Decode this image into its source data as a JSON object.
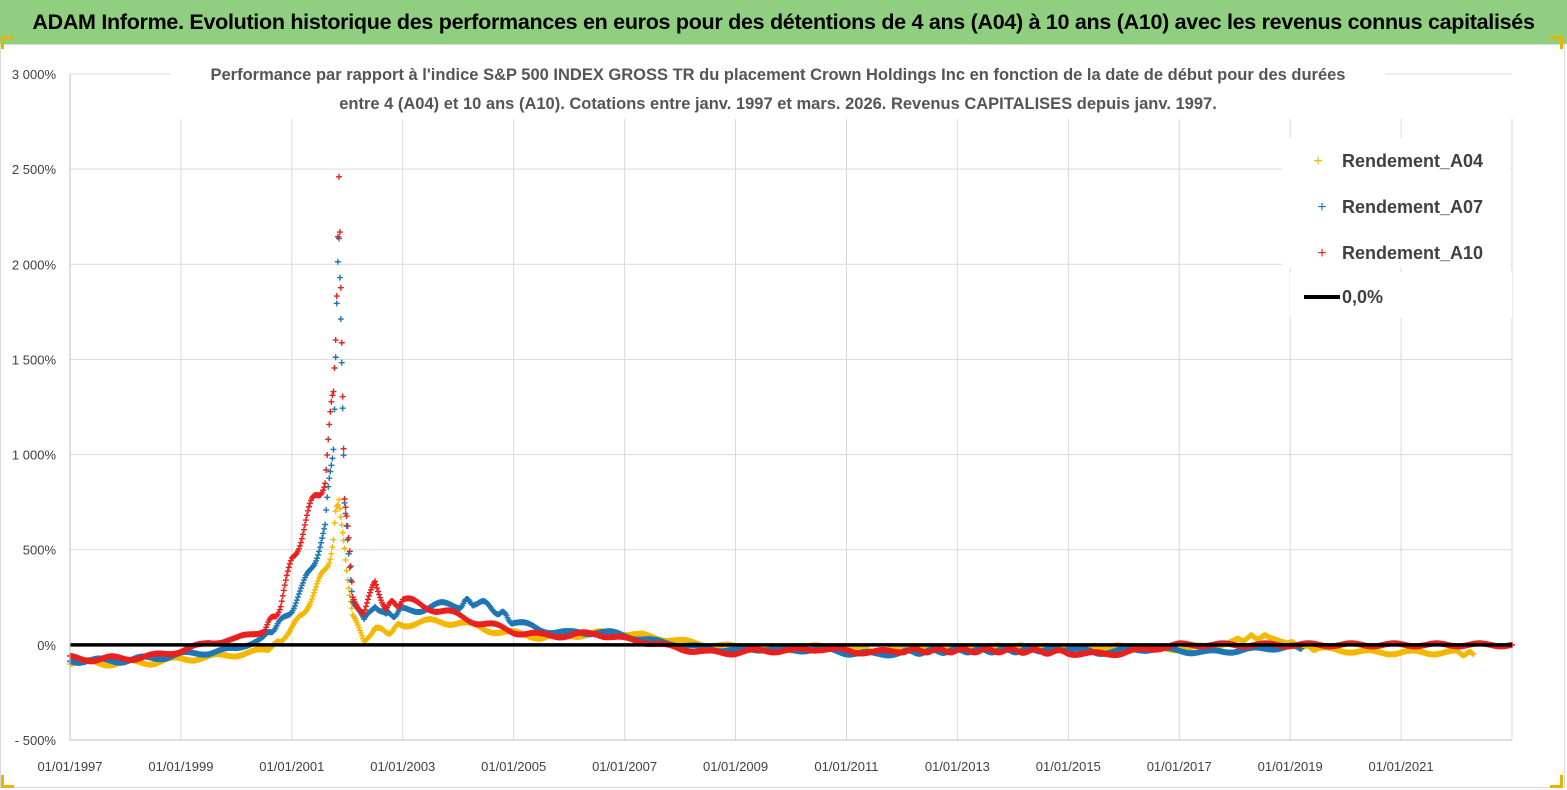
{
  "header": {
    "title": "ADAM Informe. Evolution historique des performances en euros pour des détentions de 4 ans (A04) à 10 ans (A10) avec les revenus connus capitalisés"
  },
  "chart_data": {
    "type": "scatter",
    "title_lines": [
      "Performance par rapport à l'indice S&P 500 INDEX GROSS TR  du placement Crown Holdings Inc en fonction de la date de début pour des durées",
      "entre 4 (A04) et 10 ans (A10). Cotations entre janv. 1997 et mars. 2026. Revenus CAPITALISES depuis janv. 1997."
    ],
    "xlabel": "",
    "ylabel": "",
    "ylim": [
      -500,
      3000
    ],
    "xlim": [
      1997.0,
      2023.0
    ],
    "grid": true,
    "legend_position": "top-right",
    "yticks": [
      {
        "value": 3000,
        "label": "3 000%"
      },
      {
        "value": 2500,
        "label": "2 500%"
      },
      {
        "value": 2000,
        "label": "2 000%"
      },
      {
        "value": 1500,
        "label": "1 500%"
      },
      {
        "value": 1000,
        "label": "1 000%"
      },
      {
        "value": 500,
        "label": "500%"
      },
      {
        "value": 0,
        "label": "0%"
      },
      {
        "value": -500,
        "label": "- 500%"
      }
    ],
    "xticks": [
      {
        "value": 1997,
        "label": "01/01/1997"
      },
      {
        "value": 1999,
        "label": "01/01/1999"
      },
      {
        "value": 2001,
        "label": "01/01/2001"
      },
      {
        "value": 2003,
        "label": "01/01/2003"
      },
      {
        "value": 2005,
        "label": "01/01/2005"
      },
      {
        "value": 2007,
        "label": "01/01/2007"
      },
      {
        "value": 2009,
        "label": "01/01/2009"
      },
      {
        "value": 2011,
        "label": "01/01/2011"
      },
      {
        "value": 2013,
        "label": "01/01/2013"
      },
      {
        "value": 2015,
        "label": "01/01/2015"
      },
      {
        "value": 2017,
        "label": "01/01/2017"
      },
      {
        "value": 2019,
        "label": "01/01/2019"
      },
      {
        "value": 2021,
        "label": "01/01/2021"
      }
    ],
    "series": [
      {
        "name": "Rendement_A04",
        "color": "#f5b800",
        "marker": "+",
        "x": [
          1997.0,
          1997.5,
          1998.0,
          1998.5,
          1999.0,
          1999.5,
          2000.0,
          2000.5,
          2000.8,
          2001.0,
          2001.2,
          2001.4,
          2001.6,
          2001.75,
          2001.85,
          2001.95,
          2002.1,
          2002.3,
          2002.5,
          2002.7,
          2003.0,
          2003.5,
          2004.0,
          2004.5,
          2005.0,
          2005.5,
          2006.0,
          2006.5,
          2007.0,
          2007.5,
          2008.0,
          2008.5,
          2009.0,
          2009.5,
          2010.0,
          2010.5,
          2011.0,
          2011.5,
          2012.0,
          2013.0,
          2014.0,
          2015.0,
          2016.0,
          2016.5,
          2017.0,
          2017.5,
          2018.0,
          2018.3,
          2018.6,
          2018.9,
          2019.2,
          2019.5,
          2020.0,
          2020.5,
          2021.0,
          2021.5,
          2022.0,
          2022.3
        ],
        "y": [
          -90,
          -95,
          -95,
          -90,
          -75,
          -65,
          -50,
          -30,
          20,
          90,
          160,
          280,
          380,
          550,
          820,
          500,
          150,
          20,
          90,
          60,
          110,
          120,
          120,
          80,
          60,
          40,
          50,
          60,
          60,
          40,
          20,
          0,
          -10,
          -20,
          -20,
          -10,
          -10,
          -30,
          -20,
          -20,
          -10,
          -20,
          -10,
          -20,
          -20,
          -10,
          20,
          40,
          40,
          20,
          -10,
          -20,
          -30,
          -40,
          -40,
          -40,
          -40,
          -50
        ]
      },
      {
        "name": "Rendement_A07",
        "color": "#1f77b4",
        "marker": "+",
        "x": [
          1997.0,
          1997.5,
          1998.0,
          1998.5,
          1999.0,
          1999.5,
          2000.0,
          2000.5,
          2000.8,
          2001.0,
          2001.2,
          2001.4,
          2001.6,
          2001.75,
          2001.85,
          2001.95,
          2002.1,
          2002.3,
          2002.5,
          2002.7,
          2003.0,
          2003.5,
          2004.0,
          2004.3,
          2004.7,
          2005.0,
          2005.5,
          2006.0,
          2006.5,
          2007.0,
          2007.5,
          2008.0,
          2008.5,
          2009.0,
          2009.5,
          2010.0,
          2010.5,
          2011.0,
          2011.5,
          2012.0,
          2013.0,
          2014.0,
          2015.0,
          2015.5,
          2016.0,
          2016.5,
          2017.0,
          2017.5,
          2018.0,
          2018.5,
          2019.0,
          2019.2
        ],
        "y": [
          -80,
          -85,
          -80,
          -70,
          -50,
          -40,
          -20,
          40,
          120,
          190,
          300,
          450,
          600,
          1100,
          2100,
          700,
          250,
          120,
          220,
          150,
          180,
          200,
          210,
          230,
          180,
          120,
          80,
          60,
          70,
          50,
          20,
          0,
          -20,
          -30,
          -20,
          -30,
          -20,
          -40,
          -50,
          -40,
          -30,
          -30,
          -20,
          -40,
          -30,
          -20,
          -30,
          -40,
          -30,
          -20,
          -10,
          -20
        ]
      },
      {
        "name": "Rendement_A10",
        "color": "#e8201f",
        "marker": "+",
        "x": [
          1997.0,
          1997.5,
          1998.0,
          1998.5,
          1999.0,
          1999.5,
          2000.0,
          2000.5,
          2000.8,
          2001.0,
          2001.2,
          2001.4,
          2001.6,
          2001.75,
          2001.85,
          2001.95,
          2002.1,
          2002.3,
          2002.5,
          2002.7,
          2003.0,
          2003.5,
          2004.0,
          2004.5,
          2005.0,
          2005.5,
          2006.0,
          2006.5,
          2007.0,
          2007.5,
          2008.0,
          2008.5,
          2009.0,
          2009.5,
          2010.0,
          2010.5,
          2011.0,
          2011.5,
          2012.0,
          2013.0,
          2014.0,
          2015.0,
          2015.5,
          2016.0,
          2016.5,
          2017.0,
          2017.5,
          2018.0,
          2018.5,
          2019.0,
          2019.5,
          2020.0,
          2020.5,
          2021.0,
          2021.5,
          2022.0,
          2022.5,
          2023.0
        ],
        "y": [
          -70,
          -75,
          -70,
          -60,
          -30,
          10,
          30,
          80,
          200,
          450,
          600,
          750,
          900,
          1300,
          2330,
          800,
          250,
          170,
          320,
          200,
          230,
          200,
          150,
          110,
          70,
          50,
          50,
          60,
          30,
          10,
          -20,
          -40,
          -40,
          -30,
          -30,
          -20,
          -30,
          -40,
          -30,
          -30,
          -30,
          -40,
          -50,
          -40,
          -20,
          0,
          0,
          0,
          0,
          0,
          0,
          0,
          0,
          0,
          0,
          0,
          0,
          0
        ]
      }
    ],
    "reference_line": {
      "name": "0,0%",
      "value": 0,
      "color": "#000000"
    }
  }
}
